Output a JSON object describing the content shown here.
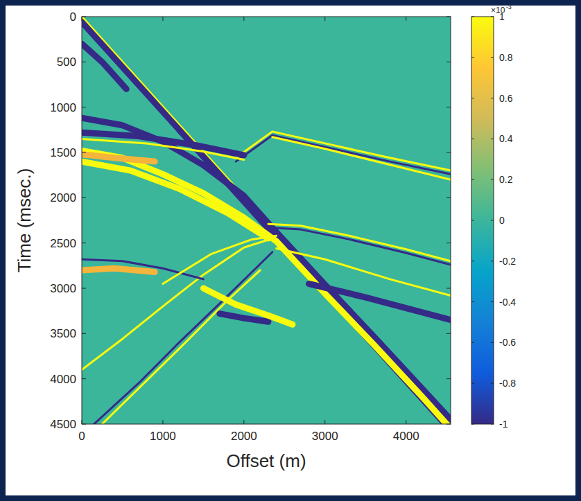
{
  "chart_data": {
    "type": "line",
    "x_label": "Offset (m)",
    "y_label": "Time (msec.)",
    "xlim": [
      0,
      4550
    ],
    "ylim": [
      0,
      4500
    ],
    "xticks": [
      0,
      1000,
      2000,
      3000,
      4000
    ],
    "yticks": [
      0,
      500,
      1000,
      1500,
      2000,
      2500,
      3000,
      3500,
      4000,
      4500
    ],
    "grid": false,
    "colorbar": {
      "range": [
        -1,
        1
      ],
      "ticks": [
        -1,
        -0.8,
        -0.6,
        -0.4,
        -0.2,
        0,
        0.2,
        0.4,
        0.6,
        0.8,
        1
      ],
      "multiplier": "×10",
      "exponent": "-3"
    },
    "series": [
      {
        "color": "#f9fb0e",
        "line_style": "thin",
        "x": [
          0,
          4530
        ],
        "values": [
          0,
          4500
        ]
      },
      {
        "color": "#352a87",
        "line_style": "thick",
        "x": [
          0,
          4480
        ],
        "values": [
          60,
          4500
        ]
      },
      {
        "color": "#352a87",
        "line_style": "thick",
        "x": [
          0,
          250,
          550
        ],
        "values": [
          300,
          500,
          800
        ]
      },
      {
        "color": "#352a87",
        "line_style": "thick",
        "x": [
          0,
          500,
          1000,
          1500,
          2000,
          2400,
          3000,
          3600,
          4200,
          4550
        ],
        "values": [
          1120,
          1200,
          1380,
          1640,
          1980,
          2380,
          2960,
          3530,
          4110,
          4450
        ]
      },
      {
        "color": "#f9fb0e",
        "line_style": "thick",
        "x": [
          0,
          500,
          1000,
          1500,
          2000,
          2400,
          3000,
          3600,
          4200,
          4500
        ],
        "values": [
          1480,
          1560,
          1740,
          1950,
          2220,
          2480,
          3060,
          3620,
          4200,
          4500
        ]
      },
      {
        "color": "#f9fb0e",
        "line_style": "thick",
        "x": [
          0,
          600,
          1200,
          1800,
          2300
        ],
        "values": [
          1600,
          1700,
          1900,
          2170,
          2450
        ]
      },
      {
        "color": "#f9fb0e",
        "line_style": "thin",
        "x": [
          1900,
          2350,
          3000,
          3800,
          4550
        ],
        "values": [
          1560,
          1270,
          1400,
          1560,
          1700
        ]
      },
      {
        "color": "#352a87",
        "line_style": "thin",
        "x": [
          1900,
          2350,
          3000,
          3800,
          4550
        ],
        "values": [
          1600,
          1310,
          1440,
          1600,
          1740
        ]
      },
      {
        "color": "#f9fb0e",
        "line_style": "thin",
        "x": [
          2350,
          3000,
          4550
        ],
        "values": [
          1330,
          1460,
          1800
        ]
      },
      {
        "color": "#352a87",
        "line_style": "thick",
        "x": [
          0,
          700,
          1400,
          2000
        ],
        "values": [
          1280,
          1320,
          1420,
          1530
        ]
      },
      {
        "color": "#f9fb0e",
        "line_style": "thin",
        "x": [
          0,
          800,
          1500,
          2000
        ],
        "values": [
          1350,
          1400,
          1490,
          1580
        ]
      },
      {
        "color": "#f5b43c",
        "line_style": "thick",
        "x": [
          0,
          400,
          900
        ],
        "values": [
          1520,
          1560,
          1600
        ]
      },
      {
        "color": "#f9fb0e",
        "line_style": "thin",
        "x": [
          2300,
          2700,
          3300,
          4000,
          4550
        ],
        "values": [
          2290,
          2310,
          2420,
          2570,
          2700
        ]
      },
      {
        "color": "#352a87",
        "line_style": "thin",
        "x": [
          2300,
          2700,
          3300,
          4000,
          4550
        ],
        "values": [
          2330,
          2350,
          2460,
          2610,
          2740
        ]
      },
      {
        "color": "#f9fb0e",
        "line_style": "thin",
        "x": [
          2400,
          3000,
          3800,
          4550
        ],
        "values": [
          2560,
          2680,
          2900,
          3080
        ]
      },
      {
        "color": "#352a87",
        "line_style": "thick",
        "x": [
          2800,
          3500,
          4550
        ],
        "values": [
          2950,
          3100,
          3350
        ]
      },
      {
        "color": "#f9fb0e",
        "line_style": "thin",
        "x": [
          0,
          500,
          1000,
          1500,
          2000,
          2350
        ],
        "values": [
          3900,
          3560,
          3200,
          2850,
          2550,
          2450
        ]
      },
      {
        "color": "#352a87",
        "line_style": "thin",
        "x": [
          150,
          700,
          1200,
          1700,
          2100,
          2350
        ],
        "values": [
          4500,
          4050,
          3600,
          3170,
          2820,
          2600
        ]
      },
      {
        "color": "#f9fb0e",
        "line_style": "thin",
        "x": [
          250,
          800,
          1300,
          1800,
          2200
        ],
        "values": [
          4500,
          4020,
          3580,
          3130,
          2800
        ]
      },
      {
        "color": "#352a87",
        "line_style": "thin",
        "x": [
          0,
          500,
          1000,
          1500
        ],
        "values": [
          2680,
          2700,
          2780,
          2900
        ]
      },
      {
        "color": "#352a87",
        "line_style": "thick",
        "x": [
          1700,
          2000,
          2300
        ],
        "values": [
          3280,
          3330,
          3370
        ]
      },
      {
        "color": "#f9fb0e",
        "line_style": "thick",
        "x": [
          1500,
          1900,
          2300,
          2600
        ],
        "values": [
          3000,
          3180,
          3300,
          3400
        ]
      },
      {
        "color": "#f5b43c",
        "line_style": "thick",
        "x": [
          0,
          400,
          900
        ],
        "values": [
          2800,
          2780,
          2820
        ]
      },
      {
        "color": "#f9fb0e",
        "line_style": "thin",
        "x": [
          1000,
          1600,
          2100,
          2400
        ],
        "values": [
          2950,
          2620,
          2460,
          2420
        ]
      }
    ]
  }
}
